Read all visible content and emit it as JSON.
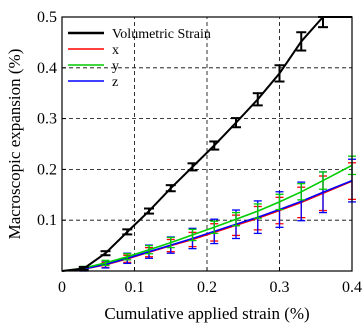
{
  "chart_data": {
    "type": "line",
    "xlabel": "Cumulative applied strain (%)",
    "ylabel": "Macroscopic expansion (%)",
    "xlim": [
      0,
      0.4
    ],
    "ylim": [
      0,
      0.5
    ],
    "xticks": [
      0,
      0.1,
      0.2,
      0.3,
      0.4
    ],
    "yticks": [
      0.1,
      0.2,
      0.3,
      0.4,
      0.5
    ],
    "xtick_labels": [
      "0",
      "0.1",
      "0.2",
      "0.3",
      "0.4"
    ],
    "ytick_labels": [
      "0.1",
      "0.2",
      "0.3",
      "0.4",
      "0.5"
    ],
    "grid": true,
    "legend_position": "top-left",
    "series": [
      {
        "name": "Volumetric Strain",
        "color": "#000000",
        "x": [
          0,
          0.03,
          0.06,
          0.09,
          0.12,
          0.15,
          0.18,
          0.21,
          0.24,
          0.27,
          0.3,
          0.33,
          0.36,
          0.4
        ],
        "y": [
          0,
          0.005,
          0.035,
          0.077,
          0.118,
          0.163,
          0.205,
          0.247,
          0.292,
          0.338,
          0.389,
          0.452,
          0.5,
          0.5
        ],
        "err": [
          0,
          0.003,
          0.004,
          0.005,
          0.005,
          0.006,
          0.007,
          0.008,
          0.009,
          0.012,
          0.016,
          0.018,
          0.02,
          0
        ]
      },
      {
        "name": "x",
        "color": "#ff0000",
        "x": [
          0,
          0.03,
          0.06,
          0.09,
          0.12,
          0.15,
          0.18,
          0.21,
          0.24,
          0.27,
          0.3,
          0.33,
          0.36,
          0.4
        ],
        "y": [
          0,
          0.004,
          0.012,
          0.024,
          0.037,
          0.05,
          0.062,
          0.076,
          0.09,
          0.104,
          0.119,
          0.135,
          0.153,
          0.177
        ],
        "err": [
          0,
          0.003,
          0.005,
          0.007,
          0.009,
          0.012,
          0.014,
          0.017,
          0.02,
          0.023,
          0.026,
          0.03,
          0.034,
          0.036
        ]
      },
      {
        "name": "y",
        "color": "#00cc00",
        "x": [
          0,
          0.03,
          0.06,
          0.09,
          0.12,
          0.15,
          0.18,
          0.21,
          0.24,
          0.27,
          0.3,
          0.33,
          0.36,
          0.4
        ],
        "y": [
          0,
          0.006,
          0.016,
          0.028,
          0.042,
          0.056,
          0.071,
          0.086,
          0.102,
          0.118,
          0.136,
          0.156,
          0.178,
          0.208
        ],
        "err": [
          0,
          0.003,
          0.005,
          0.006,
          0.008,
          0.01,
          0.011,
          0.012,
          0.013,
          0.014,
          0.015,
          0.016,
          0.017,
          0.018
        ]
      },
      {
        "name": "z",
        "color": "#0000ff",
        "x": [
          0,
          0.03,
          0.06,
          0.09,
          0.12,
          0.15,
          0.18,
          0.21,
          0.24,
          0.27,
          0.3,
          0.33,
          0.36,
          0.4
        ],
        "y": [
          0,
          0.004,
          0.013,
          0.025,
          0.038,
          0.051,
          0.064,
          0.078,
          0.092,
          0.106,
          0.121,
          0.137,
          0.155,
          0.178
        ],
        "err": [
          0,
          0.004,
          0.007,
          0.01,
          0.013,
          0.016,
          0.02,
          0.024,
          0.028,
          0.032,
          0.035,
          0.038,
          0.04,
          0.042
        ]
      }
    ]
  }
}
